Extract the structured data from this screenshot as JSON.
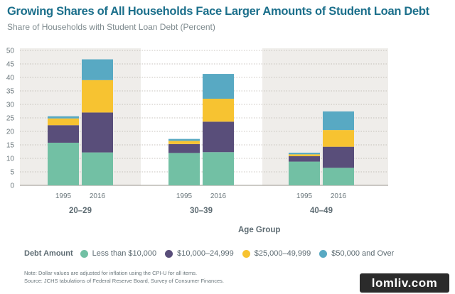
{
  "title": "Growing Shares of All Households Face Larger Amounts of Student Loan Debt",
  "subtitle": "Share of Households with Student Loan Debt (Percent)",
  "chart_data": {
    "type": "bar",
    "stacked": true,
    "groups": [
      "20–29",
      "30–39",
      "40–49"
    ],
    "categories": [
      "1995",
      "2016"
    ],
    "xlabel": "Age Group",
    "ylabel": "",
    "ylim": [
      0,
      50
    ],
    "yticks": [
      0,
      5,
      10,
      15,
      20,
      25,
      30,
      35,
      40,
      45,
      50
    ],
    "grid": true,
    "legend_title": "Debt Amount",
    "series": [
      {
        "name": "Less than $10,000",
        "color": "#72c0a4",
        "values": [
          [
            15.8,
            12.2
          ],
          [
            12.0,
            12.3
          ],
          [
            8.8,
            6.5
          ]
        ]
      },
      {
        "name": "$10,000–24,999",
        "color": "#594e7a",
        "values": [
          [
            6.5,
            14.8
          ],
          [
            3.3,
            11.3
          ],
          [
            2.0,
            7.8
          ]
        ]
      },
      {
        "name": "$25,000–49,999",
        "color": "#f7c331",
        "values": [
          [
            2.5,
            12.0
          ],
          [
            1.2,
            8.5
          ],
          [
            0.7,
            6.2
          ]
        ]
      },
      {
        "name": "$50,000 and Over",
        "color": "#58a9c3",
        "values": [
          [
            0.8,
            7.7
          ],
          [
            0.7,
            9.2
          ],
          [
            0.6,
            6.9
          ]
        ]
      }
    ]
  },
  "notes": {
    "line1": "Note: Dollar values are adjusted for inflation using the CPI-U for all items.",
    "line2": "Source: JCHS tabulations of Federal Reserve Board, Survey of Consumer Finances."
  },
  "watermark": "lomliv.com"
}
